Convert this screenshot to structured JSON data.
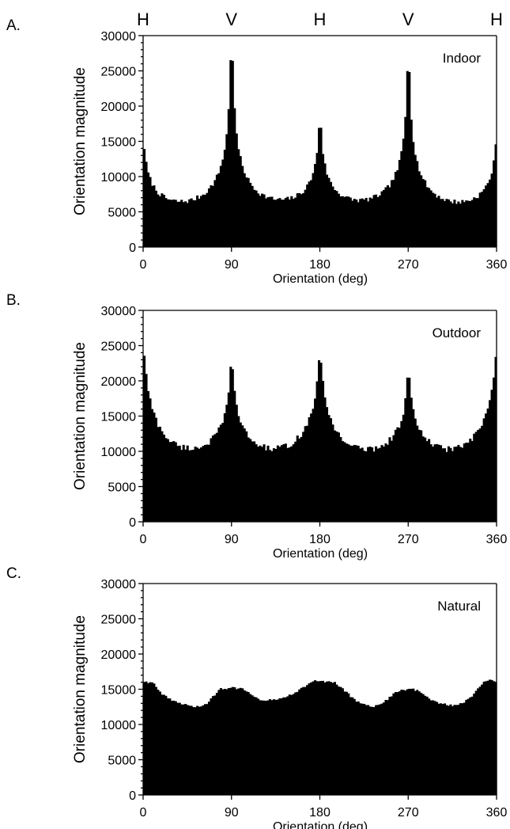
{
  "top_markers": [
    {
      "label": "H",
      "x": 0
    },
    {
      "label": "V",
      "x": 90
    },
    {
      "label": "H",
      "x": 180
    },
    {
      "label": "V",
      "x": 270
    },
    {
      "label": "H",
      "x": 360
    }
  ],
  "colors": {
    "bars": "#000000",
    "axis": "#000000",
    "background": "#ffffff"
  },
  "chart_data": [
    {
      "type": "bar",
      "panel_letter": "A.",
      "title": "Indoor",
      "xlabel": "Orientation (deg)",
      "ylabel": "Orientation magnitude",
      "xlim": [
        0,
        360
      ],
      "ylim": [
        0,
        30000
      ],
      "xticks": [
        0,
        90,
        180,
        270,
        360
      ],
      "yticks": [
        0,
        5000,
        10000,
        15000,
        20000,
        25000,
        30000
      ],
      "grid": false,
      "bin_width_deg": 2,
      "baseline": 3400,
      "baseline_slope": 14,
      "noise": 350,
      "peaks": [
        {
          "x": 0,
          "height": 7900,
          "width": 3.2,
          "tail": 3800
        },
        {
          "x": 90,
          "height": 25600,
          "width": 2.2,
          "tail": 4600
        },
        {
          "x": 180,
          "height": 12600,
          "width": 2.4,
          "tail": 3400
        },
        {
          "x": 270,
          "height": 23500,
          "width": 2.2,
          "tail": 4400
        },
        {
          "x": 360,
          "height": 8300,
          "width": 3.2,
          "tail": 3800
        }
      ]
    },
    {
      "type": "bar",
      "panel_letter": "B.",
      "title": "Outdoor",
      "xlabel": "Orientation (deg)",
      "ylabel": "Orientation magnitude",
      "xlim": [
        0,
        360
      ],
      "ylim": [
        0,
        30000
      ],
      "xticks": [
        0,
        90,
        180,
        270,
        360
      ],
      "yticks": [
        0,
        5000,
        10000,
        15000,
        20000,
        25000,
        30000
      ],
      "grid": false,
      "bin_width_deg": 2,
      "baseline": 7200,
      "baseline_slope": 0,
      "noise": 450,
      "peaks": [
        {
          "x": 0,
          "height": 11500,
          "width": 5,
          "tail": 6500
        },
        {
          "x": 90,
          "height": 12600,
          "width": 2.2,
          "tail": 5000
        },
        {
          "x": 180,
          "height": 10600,
          "width": 4,
          "tail": 6000
        },
        {
          "x": 270,
          "height": 10200,
          "width": 2.2,
          "tail": 5000
        },
        {
          "x": 360,
          "height": 11500,
          "width": 5,
          "tail": 6500
        }
      ]
    },
    {
      "type": "area",
      "panel_letter": "C.",
      "title": "Natural",
      "xlabel": "Orientation (deg)",
      "ylabel": "Orientation magnitude",
      "xlim": [
        0,
        360
      ],
      "ylim": [
        0,
        30000
      ],
      "xticks": [
        0,
        90,
        180,
        270,
        360
      ],
      "yticks": [
        0,
        5000,
        10000,
        15000,
        20000,
        25000,
        30000
      ],
      "grid": false,
      "bin_width_deg": 2,
      "noise": 150,
      "points": [
        [
          0,
          16100
        ],
        [
          10,
          15900
        ],
        [
          20,
          14200
        ],
        [
          30,
          13300
        ],
        [
          45,
          12700
        ],
        [
          55,
          12500
        ],
        [
          65,
          12900
        ],
        [
          72,
          14100
        ],
        [
          78,
          15000
        ],
        [
          90,
          15200
        ],
        [
          100,
          15100
        ],
        [
          110,
          14300
        ],
        [
          120,
          13500
        ],
        [
          135,
          13500
        ],
        [
          150,
          14200
        ],
        [
          165,
          15400
        ],
        [
          175,
          16200
        ],
        [
          185,
          16100
        ],
        [
          195,
          15900
        ],
        [
          205,
          14800
        ],
        [
          215,
          13500
        ],
        [
          225,
          12800
        ],
        [
          235,
          12600
        ],
        [
          245,
          13100
        ],
        [
          255,
          14300
        ],
        [
          262,
          14900
        ],
        [
          275,
          15000
        ],
        [
          285,
          14400
        ],
        [
          295,
          13300
        ],
        [
          305,
          12900
        ],
        [
          315,
          12700
        ],
        [
          325,
          13000
        ],
        [
          335,
          14100
        ],
        [
          345,
          15800
        ],
        [
          352,
          16300
        ],
        [
          360,
          16000
        ]
      ]
    }
  ]
}
